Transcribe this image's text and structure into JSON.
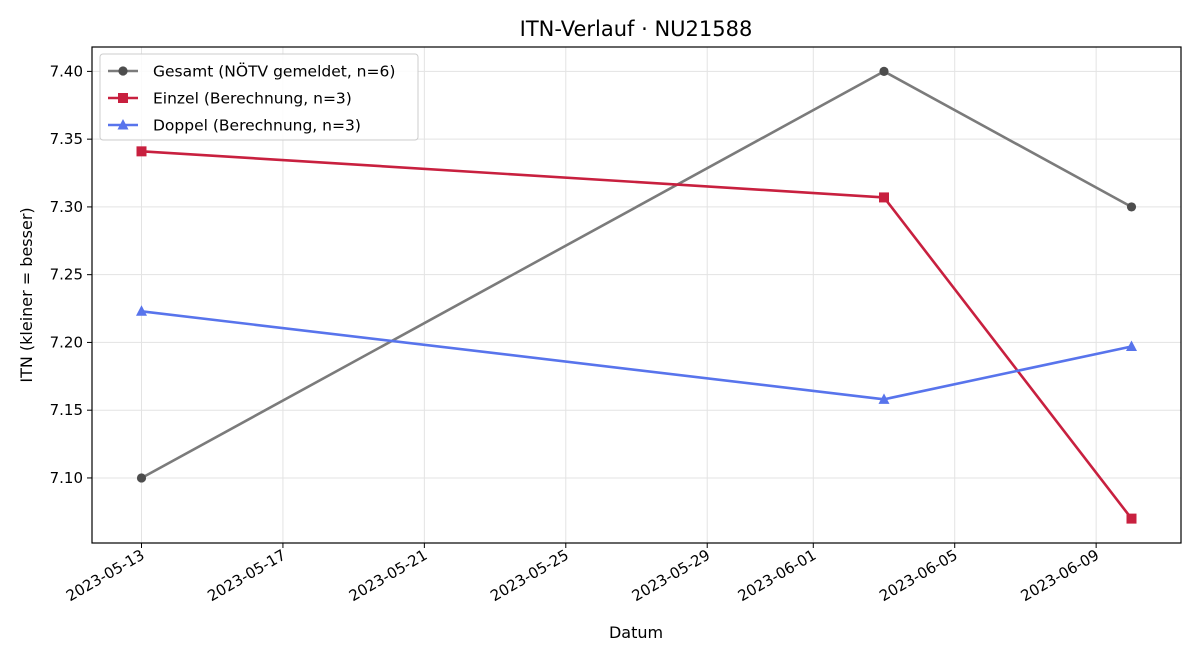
{
  "chart_data": {
    "type": "line",
    "title": "ITN-Verlauf · NU21588",
    "xlabel": "Datum",
    "ylabel": "ITN  (kleiner = besser)",
    "x_type": "date",
    "xlim": [
      "2023-05-11",
      "2023-06-11"
    ],
    "ylim": [
      7.052,
      7.418
    ],
    "x_ticks": [
      "2023-05-13",
      "2023-05-17",
      "2023-05-21",
      "2023-05-25",
      "2023-05-29",
      "2023-06-01",
      "2023-06-05",
      "2023-06-09"
    ],
    "y_ticks": [
      7.1,
      7.15,
      7.2,
      7.25,
      7.3,
      7.35,
      7.4
    ],
    "y_tick_labels": [
      "7.10",
      "7.15",
      "7.20",
      "7.25",
      "7.30",
      "7.35",
      "7.40"
    ],
    "grid": true,
    "legend_position": "top-left",
    "series": [
      {
        "name": "Gesamt (NÖTV gemeldet, n=6)",
        "color": "#7b7b7b",
        "marker_color": "#4d4d4d",
        "marker": "circle",
        "x": [
          "2023-05-13",
          "2023-06-03",
          "2023-06-10"
        ],
        "y": [
          7.1,
          7.4,
          7.3
        ]
      },
      {
        "name": "Einzel (Berechnung, n=3)",
        "color": "#c8203f",
        "marker_color": "#c8203f",
        "marker": "square",
        "x": [
          "2023-05-13",
          "2023-06-03",
          "2023-06-10"
        ],
        "y": [
          7.341,
          7.307,
          7.07
        ]
      },
      {
        "name": "Doppel (Berechnung, n=3)",
        "color": "#5874ec",
        "marker_color": "#5874ec",
        "marker": "triangle",
        "x": [
          "2023-05-13",
          "2023-06-03",
          "2023-06-10"
        ],
        "y": [
          7.223,
          7.158,
          7.197
        ]
      }
    ]
  }
}
